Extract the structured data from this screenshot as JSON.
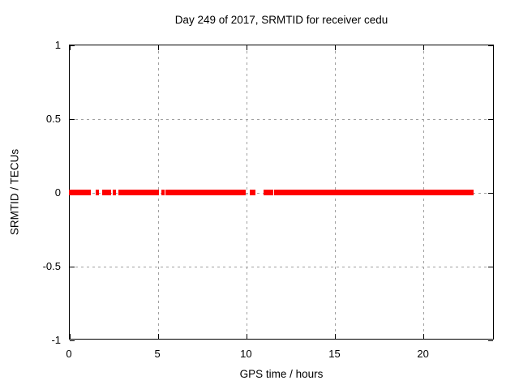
{
  "title": "Day 249 of 2017, SRMTID for receiver cedu",
  "chart_data": {
    "type": "scatter",
    "title": "Day 249 of 2017, SRMTID for receiver cedu",
    "xlabel": "GPS time / hours",
    "ylabel": "SRMTID / TECUs",
    "xlim": [
      0,
      24
    ],
    "ylim": [
      -1,
      1
    ],
    "xticks": [
      0,
      5,
      10,
      15,
      20
    ],
    "yticks": [
      -1,
      -0.5,
      0,
      0.5,
      1
    ],
    "grid": true,
    "legend": "none",
    "series": [
      {
        "name": "SRMTID",
        "marker": "filled-square",
        "color": "#ff0000",
        "y_value": 0,
        "x_segments_hours": [
          [
            0.0,
            1.25
          ],
          [
            1.51,
            1.68
          ],
          [
            1.88,
            2.4
          ],
          [
            2.47,
            2.66
          ],
          [
            2.79,
            5.08
          ],
          [
            5.24,
            5.35
          ],
          [
            5.45,
            10.0
          ],
          [
            10.2,
            10.54
          ],
          [
            10.98,
            11.06
          ],
          [
            11.17,
            11.25
          ],
          [
            11.37,
            11.45
          ],
          [
            11.57,
            22.87
          ]
        ]
      }
    ]
  },
  "style": {
    "background": "#ffffff",
    "axis_color": "#000000",
    "text_color": "#000000",
    "grid_color": "#a0a0a0",
    "point_color": "#ff0000"
  }
}
